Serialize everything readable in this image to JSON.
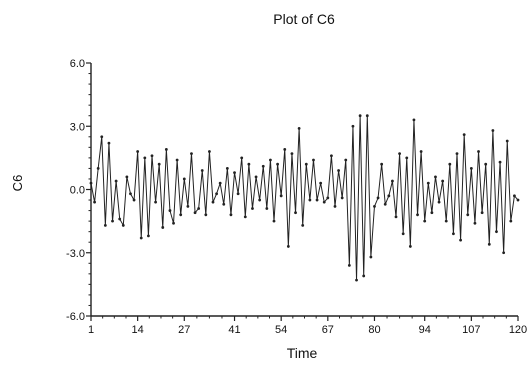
{
  "chart_data": {
    "type": "line",
    "title": "Plot of C6",
    "xlabel": "Time",
    "ylabel": "C6",
    "xlim": [
      1,
      120
    ],
    "ylim": [
      -6.0,
      6.0
    ],
    "xticks": [
      1,
      14,
      27,
      41,
      54,
      67,
      80,
      94,
      107,
      120
    ],
    "xtick_labels": [
      "1",
      "14",
      "27",
      "41",
      "54",
      "67",
      "80",
      "94",
      "107",
      "120"
    ],
    "yticks": [
      6.0,
      3.0,
      0.0,
      -3.0,
      -6.0
    ],
    "ytick_labels": [
      "6.0",
      "3.0",
      "0.0",
      "-3.0",
      "-6.0"
    ],
    "grid": false,
    "line_color": "#222222",
    "series": [
      {
        "x": [
          1,
          2,
          3,
          4,
          5,
          6,
          7,
          8,
          9,
          10,
          11,
          12,
          13,
          14,
          15,
          16,
          17,
          18,
          19,
          20,
          21,
          22,
          23,
          24,
          25,
          26,
          27,
          28,
          29,
          30,
          31,
          32,
          33,
          34,
          35,
          36,
          37,
          38,
          39,
          40,
          41,
          42,
          43,
          44,
          45,
          46,
          47,
          48,
          49,
          50,
          51,
          52,
          53,
          54,
          55,
          56,
          57,
          58,
          59,
          60,
          61,
          62,
          63,
          64,
          65,
          66,
          67,
          68,
          69,
          70,
          71,
          72,
          73,
          74,
          75,
          76,
          77,
          78,
          79,
          80,
          81,
          82,
          83,
          84,
          85,
          86,
          87,
          88,
          89,
          90,
          91,
          92,
          93,
          94,
          95,
          96,
          97,
          98,
          99,
          100,
          101,
          102,
          103,
          104,
          105,
          106,
          107,
          108,
          109,
          110,
          111,
          112,
          113,
          114,
          115,
          116,
          117,
          118,
          119,
          120
        ],
        "values": [
          0.3,
          -0.6,
          1.0,
          2.5,
          -1.7,
          2.2,
          -1.5,
          0.4,
          -1.4,
          -1.7,
          0.6,
          -0.2,
          -0.5,
          1.8,
          -2.3,
          1.5,
          -2.2,
          1.6,
          -0.6,
          1.2,
          -1.8,
          1.9,
          -1.0,
          -1.6,
          1.4,
          -1.2,
          0.5,
          -0.8,
          1.7,
          -1.1,
          -0.9,
          0.9,
          -1.2,
          1.8,
          -0.6,
          -0.2,
          0.3,
          -0.7,
          1.0,
          -1.2,
          0.8,
          -0.2,
          1.5,
          -1.3,
          1.2,
          -0.9,
          0.6,
          -0.5,
          1.1,
          -0.9,
          1.4,
          -1.5,
          1.2,
          -0.3,
          1.9,
          -2.7,
          1.7,
          -1.1,
          2.9,
          -1.7,
          1.2,
          -0.5,
          1.4,
          -0.5,
          0.3,
          -0.6,
          -0.4,
          1.6,
          -0.8,
          0.9,
          -0.4,
          1.4,
          -3.6,
          3.0,
          -4.3,
          3.5,
          -4.1,
          3.5,
          -3.2,
          -0.8,
          -0.4,
          1.2,
          -0.7,
          -0.3,
          0.4,
          -1.3,
          1.7,
          -2.1,
          1.5,
          -2.7,
          3.3,
          -1.2,
          1.8,
          -1.5,
          0.3,
          -1.1,
          0.6,
          -0.6,
          0.4,
          -1.5,
          1.2,
          -2.1,
          1.7,
          -2.4,
          2.6,
          -1.2,
          1.0,
          -1.6,
          1.8,
          -1.1,
          1.2,
          -2.6,
          2.8,
          -2.0,
          1.3,
          -3.0,
          2.3,
          -1.5,
          -0.3,
          -0.5
        ]
      }
    ]
  }
}
